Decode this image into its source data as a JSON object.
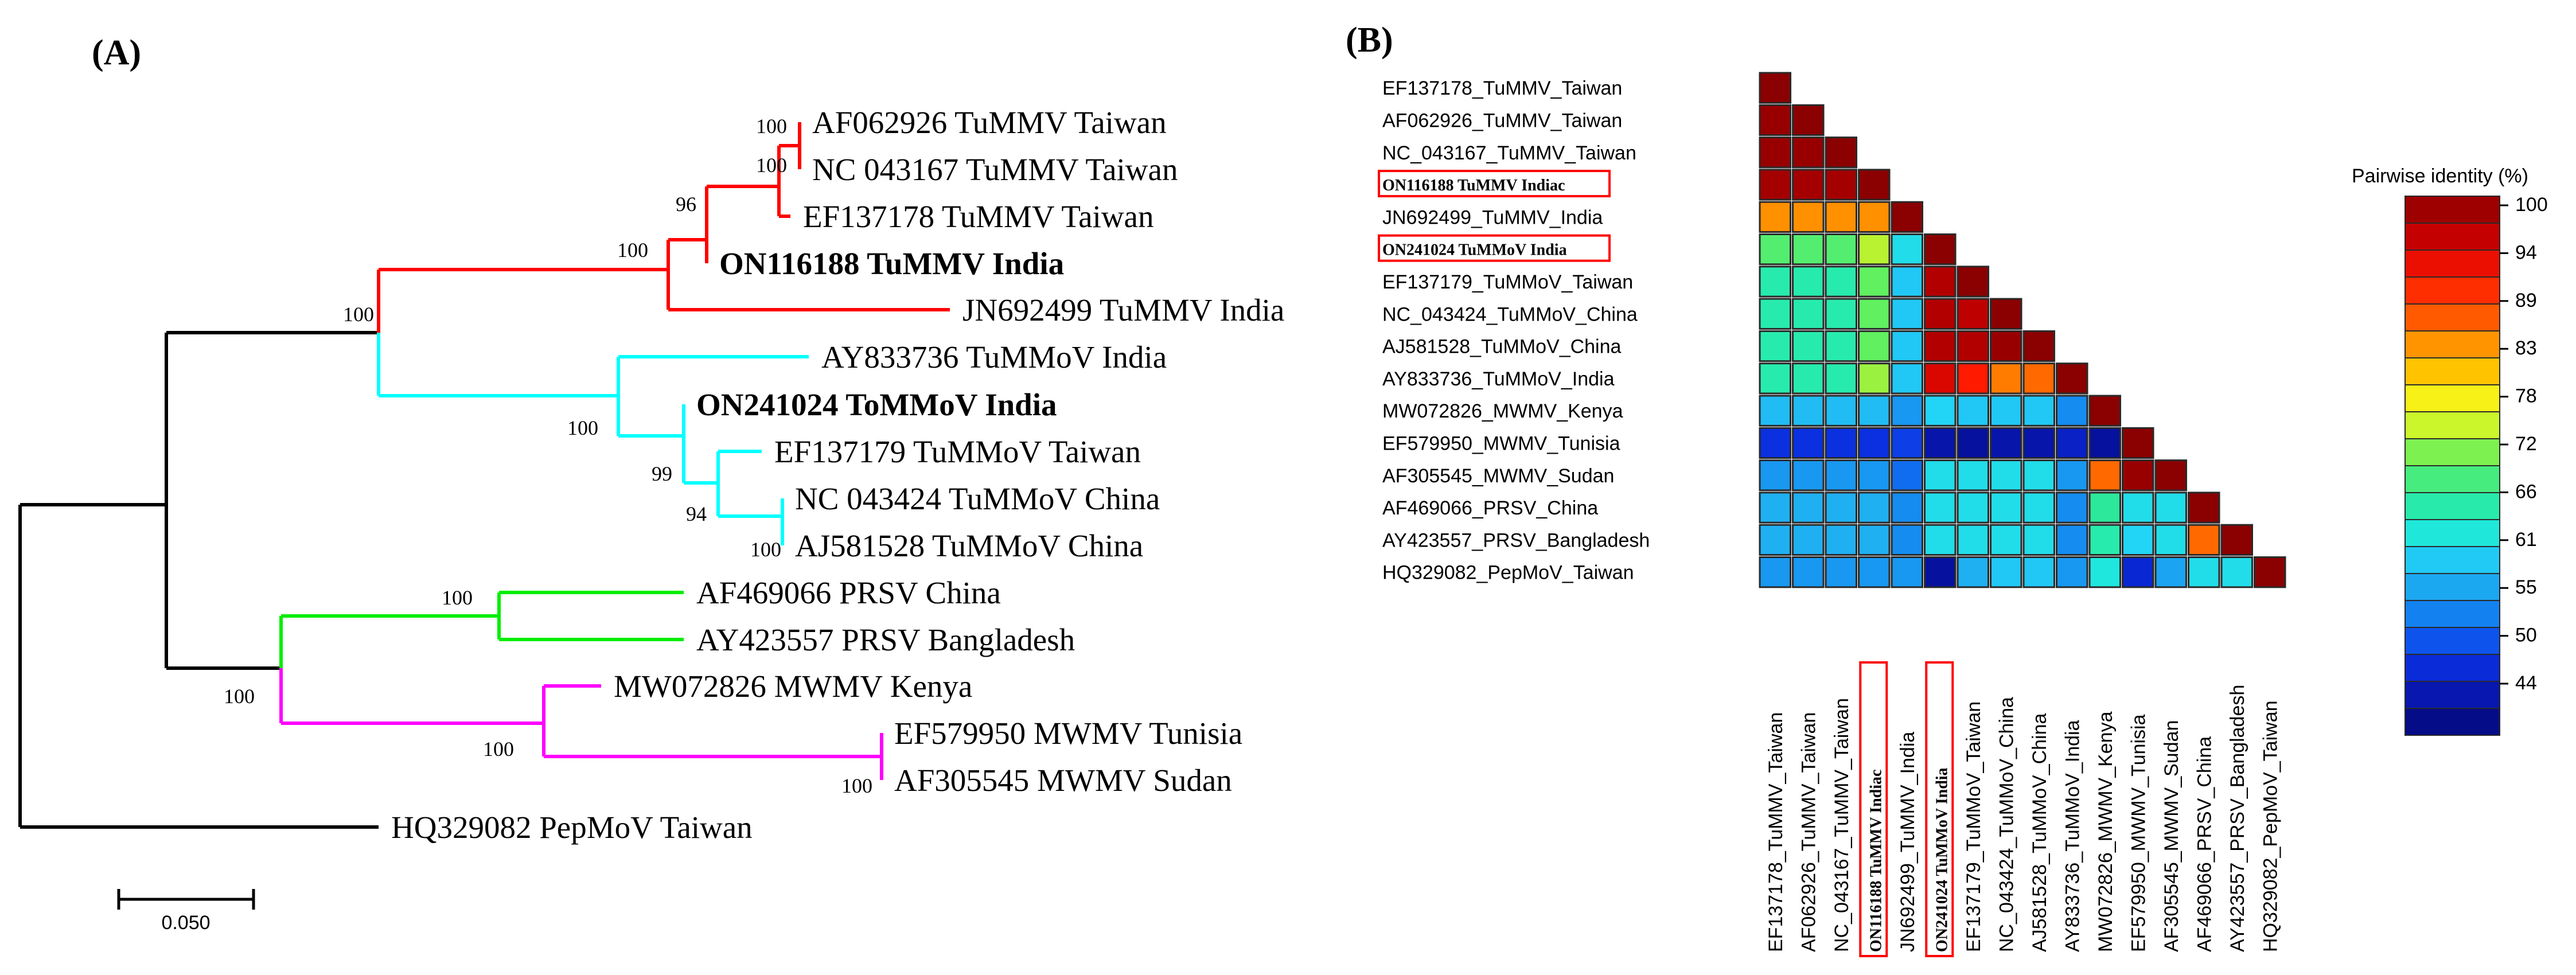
{
  "panel_a": {
    "label": "(A)",
    "scale_bar_label": "0.050",
    "leaves": [
      {
        "name": "AF062926 TuMMV Taiwan",
        "bold": false
      },
      {
        "name": "NC 043167 TuMMV Taiwan",
        "bold": false
      },
      {
        "name": "EF137178 TuMMV Taiwan",
        "bold": false
      },
      {
        "name": "ON116188 TuMMV India",
        "bold": true
      },
      {
        "name": "JN692499 TuMMV India",
        "bold": false
      },
      {
        "name": "AY833736 TuMMoV India",
        "bold": false
      },
      {
        "name": "ON241024 ToMMoV India",
        "bold": true
      },
      {
        "name": "EF137179 TuMMoV Taiwan",
        "bold": false
      },
      {
        "name": "NC 043424 TuMMoV China",
        "bold": false
      },
      {
        "name": "AJ581528 TuMMoV China",
        "bold": false
      },
      {
        "name": "AF469066 PRSV China",
        "bold": false
      },
      {
        "name": "AY423557 PRSV Bangladesh",
        "bold": false
      },
      {
        "name": "MW072826 MWMV Kenya",
        "bold": false
      },
      {
        "name": "EF579950 MWMV Tunisia",
        "bold": false
      },
      {
        "name": "AF305545 MWMV Sudan",
        "bold": false
      },
      {
        "name": "HQ329082 PepMoV Taiwan",
        "bold": false
      }
    ],
    "bootstrap_values": [
      "100",
      "100",
      "96",
      "100",
      "100",
      "100",
      "99",
      "94",
      "100",
      "100",
      "100",
      "100",
      "100"
    ],
    "clade_colors": {
      "tummv": "#ff0000",
      "tummov": "#00ffff",
      "prsv": "#00ee00",
      "mwmv": "#ff00ff",
      "root": "#000000"
    }
  },
  "panel_b": {
    "label": "(B)",
    "legend_title": "Pairwise identity (%)",
    "legend_ticks": [
      "100",
      "94",
      "89",
      "83",
      "78",
      "72",
      "66",
      "61",
      "55",
      "50",
      "44"
    ],
    "highlight_color": "#ff0000",
    "chart_data": {
      "type": "heatmap",
      "title": "",
      "labels": [
        "EF137178_TuMMV_Taiwan",
        "AF062926_TuMMV_Taiwan",
        "NC_043167_TuMMV_Taiwan",
        "ON116188 TuMMV Indiac",
        "JN692499_TuMMV_India",
        "ON241024 TuMMoV India",
        "EF137179_TuMMoV_Taiwan",
        "NC_043424_TuMMoV_China",
        "AJ581528_TuMMoV_China",
        "AY833736_TuMMoV_India",
        "MW072826_MWMV_Kenya",
        "EF579950_MWMV_Tunisia",
        "AF305545_MWMV_Sudan",
        "AF469066_PRSV_China",
        "AY423557_PRSV_Bangladesh",
        "HQ329082_PepMoV_Taiwan"
      ],
      "highlighted_labels": [
        "ON116188 TuMMV Indiac",
        "ON241024 TuMMoV India"
      ],
      "value_range": [
        41,
        100
      ],
      "colorbar_label": "Pairwise identity (%)",
      "matrix": [
        [
          100
        ],
        [
          99,
          100
        ],
        [
          99,
          99,
          100
        ],
        [
          98,
          98,
          98,
          100
        ],
        [
          84,
          84,
          84,
          84,
          100
        ],
        [
          70,
          70,
          70,
          74,
          62,
          100
        ],
        [
          66,
          66,
          66,
          71,
          60,
          97,
          100
        ],
        [
          66,
          66,
          66,
          71,
          60,
          97,
          96,
          100
        ],
        [
          66,
          66,
          66,
          71,
          60,
          97,
          97,
          99,
          100
        ],
        [
          66,
          66,
          66,
          73,
          60,
          94,
          91,
          85,
          86,
          100
        ],
        [
          59,
          59,
          59,
          59,
          56,
          61,
          60,
          60,
          60,
          55,
          100
        ],
        [
          49,
          49,
          49,
          49,
          50,
          45,
          44,
          45,
          45,
          47,
          44,
          100
        ],
        [
          56,
          56,
          56,
          56,
          53,
          62,
          62,
          62,
          62,
          56,
          86,
          99,
          100
        ],
        [
          58,
          58,
          58,
          58,
          55,
          62,
          62,
          62,
          62,
          55,
          67,
          62,
          62,
          100
        ],
        [
          58,
          58,
          58,
          58,
          55,
          62,
          62,
          62,
          62,
          55,
          66,
          61,
          62,
          86,
          100
        ],
        [
          56,
          56,
          56,
          56,
          56,
          44,
          58,
          60,
          60,
          56,
          63,
          48,
          57,
          62,
          62,
          100
        ]
      ]
    }
  }
}
